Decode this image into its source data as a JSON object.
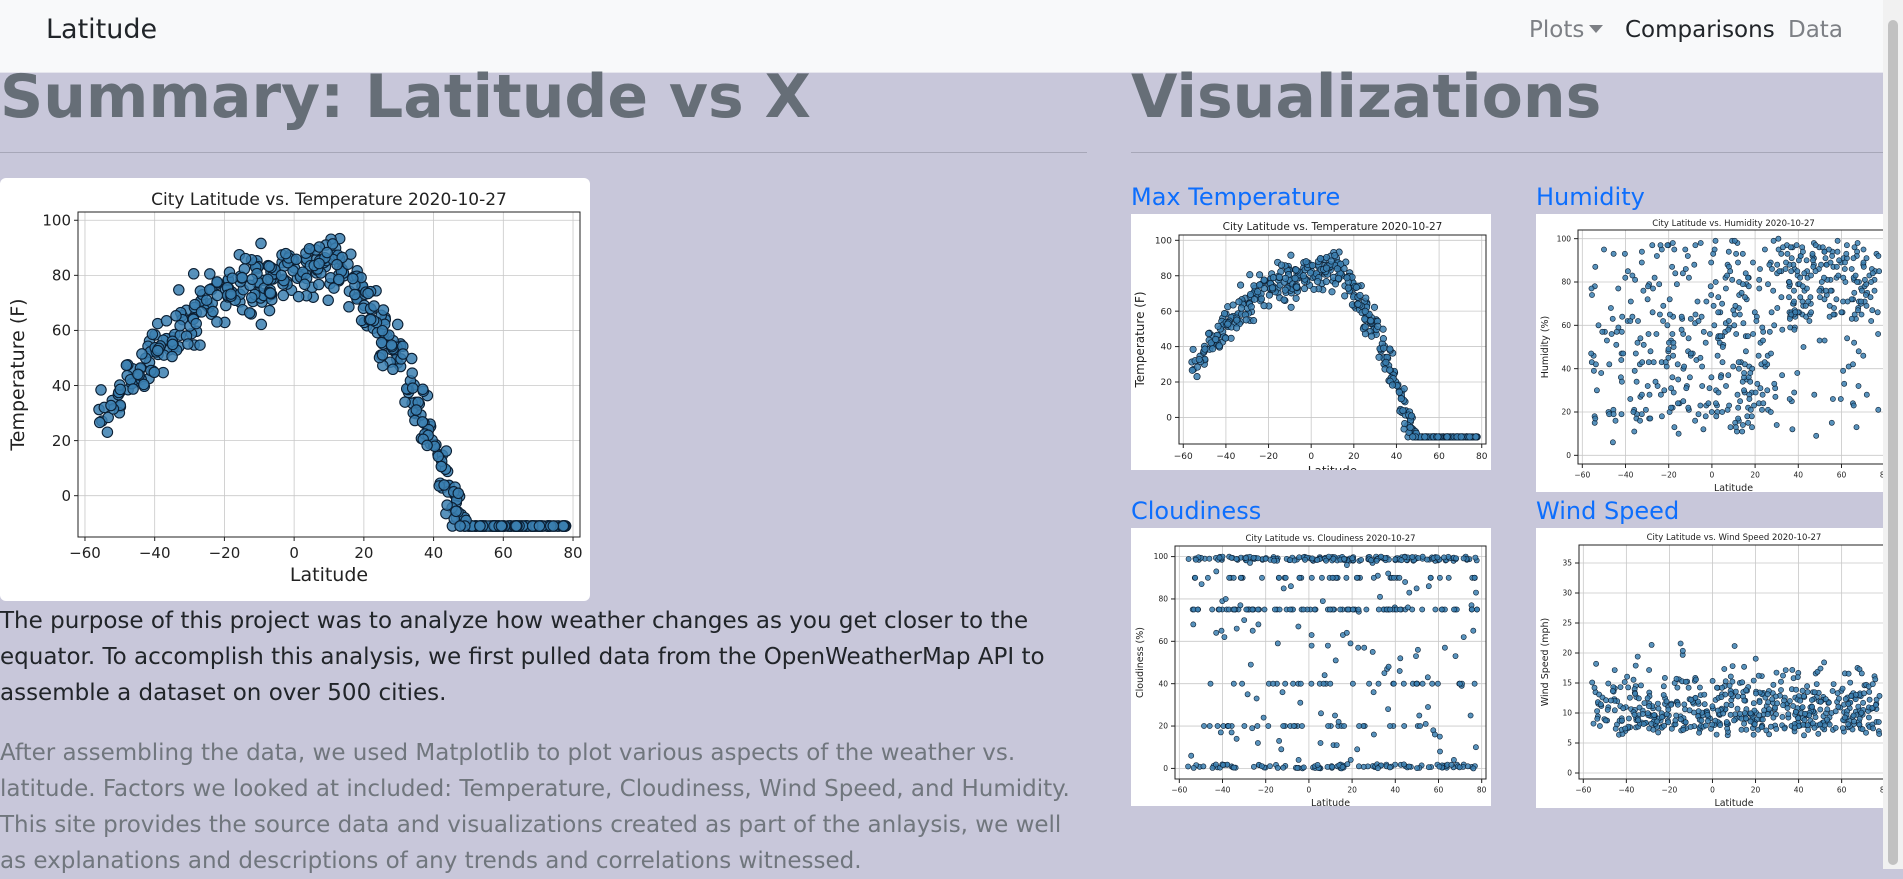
{
  "navbar": {
    "brand": "Latitude",
    "links": [
      {
        "label": "Plots",
        "dropdown": true
      },
      {
        "label": "Comparisons",
        "active": true
      },
      {
        "label": "Data"
      }
    ]
  },
  "summary": {
    "heading": "Summary: Latitude vs X",
    "paragraph1": "The purpose of this project was to analyze how weather changes as you get closer to the equator. To accomplish this analysis, we first pulled data from the OpenWeatherMap API to assemble a dataset on over 500 cities.",
    "paragraph2": "After assembling the data, we used Matplotlib to plot various aspects of the weather vs. latitude. Factors we looked at included: Temperature, Cloudiness, Wind Speed, and Humidity. This site provides the source data and visualizations created as part of the anlaysis, we well as explanations and descriptions of any trends and correlations witnessed."
  },
  "visualizations": {
    "heading": "Visualizations",
    "items": [
      {
        "label": "Max Temperature",
        "chart": 1
      },
      {
        "label": "Humidity",
        "chart": 2
      },
      {
        "label": "Cloudiness",
        "chart": 3
      },
      {
        "label": "Wind Speed",
        "chart": 4
      }
    ]
  },
  "colors": {
    "page_background": "#c8c7da",
    "navbar_background": "#f8f9fa",
    "link": "#0d6efd",
    "marker_fill": "#3b7fb0",
    "marker_edge": "#0b1f33"
  },
  "chart_data": [
    {
      "type": "scatter",
      "title": "City Latitude vs. Temperature 2020-10-27",
      "xlabel": "Latitude",
      "ylabel": "Temperature (F)",
      "xlim": [
        -62,
        82
      ],
      "ylim": [
        -15,
        103
      ],
      "xticks": [
        -60,
        -40,
        -20,
        0,
        20,
        40,
        60,
        80
      ],
      "yticks": [
        0,
        20,
        40,
        60,
        80,
        100
      ],
      "grid": true,
      "pattern": "temperature",
      "approx_points": 560
    },
    {
      "type": "scatter",
      "title": "City Latitude vs. Temperature 2020-10-27",
      "xlabel": "Latitude",
      "ylabel": "Temperature (F)",
      "xlim": [
        -62,
        82
      ],
      "ylim": [
        -15,
        103
      ],
      "xticks": [
        -60,
        -40,
        -20,
        0,
        20,
        40,
        60,
        80
      ],
      "yticks": [
        0,
        20,
        40,
        60,
        80,
        100
      ],
      "grid": true,
      "pattern": "temperature",
      "approx_points": 560
    },
    {
      "type": "scatter",
      "title": "City Latitude vs. Humidity 2020-10-27",
      "xlabel": "Latitude",
      "ylabel": "Humidity (%)",
      "xlim": [
        -62,
        82
      ],
      "ylim": [
        -4,
        104
      ],
      "xticks": [
        -60,
        -40,
        -20,
        0,
        20,
        40,
        60,
        80
      ],
      "yticks": [
        0,
        20,
        40,
        60,
        80,
        100
      ],
      "grid": true,
      "pattern": "humidity",
      "approx_points": 560
    },
    {
      "type": "scatter",
      "title": "City Latitude vs. Cloudiness 2020-10-27",
      "xlabel": "Latitude",
      "ylabel": "Cloudiness (%)",
      "xlim": [
        -62,
        82
      ],
      "ylim": [
        -5,
        105
      ],
      "xticks": [
        -60,
        -40,
        -20,
        0,
        20,
        40,
        60,
        80
      ],
      "yticks": [
        0,
        20,
        40,
        60,
        80,
        100
      ],
      "grid": true,
      "pattern": "cloudiness",
      "approx_points": 560
    },
    {
      "type": "scatter",
      "title": "City Latitude vs. Wind Speed 2020-10-27",
      "xlabel": "Latitude",
      "ylabel": "Wind Speed (mph)",
      "xlim": [
        -62,
        82
      ],
      "ylim": [
        -1,
        38
      ],
      "xticks": [
        -60,
        -40,
        -20,
        0,
        20,
        40,
        60,
        80
      ],
      "yticks": [
        0,
        5,
        10,
        15,
        20,
        25,
        30,
        35
      ],
      "grid": true,
      "pattern": "wind",
      "approx_points": 560
    }
  ]
}
